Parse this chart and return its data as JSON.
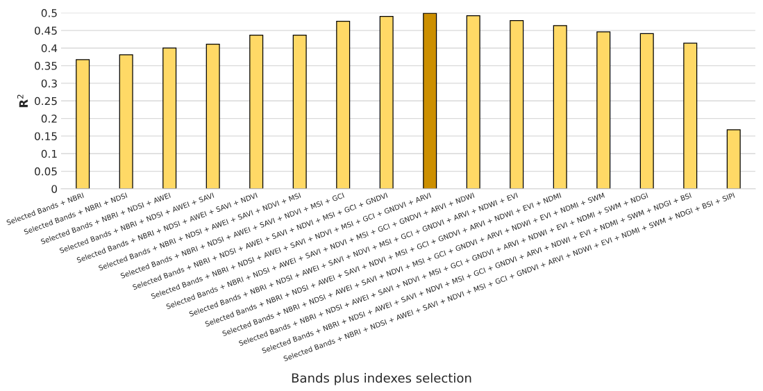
{
  "chart_data": {
    "type": "bar",
    "categories": [
      "Selected Bands + NBRI",
      "Selected Bands + NBRI + NDSI",
      "Selected Bands + NBRI + NDSI + AWEI",
      "Selected Bands + NBRI + NDSI + AWEI + SAVI",
      "Selected Bands + NBRI + NDSI + AWEI + SAVI + NDVI",
      "Selected Bands + NBRI + NDSI + AWEI + SAVI + NDVI + MSI",
      "Selected Bands + NBRI + NDSI + AWEI + SAVI + NDVI + MSI + GCI",
      "Selected Bands + NBRI + NDSI + AWEI + SAVI + NDVI + MSI + GCI + GNDVI",
      "Selected Bands + NBRI + NDSI + AWEI + SAVI + NDVI + MSI + GCI + GNDVI + ARVI",
      "Selected Bands + NBRI + NDSI + AWEI + SAVI + NDVI + MSI + GCI + GNDVI + ARVI + NDWI",
      "Selected Bands + NBRI + NDSI + AWEI + SAVI + NDVI + MSI + GCI + GNDVI + ARVI + NDWI + EVI",
      "Selected Bands + NBRI + NDSI + AWEI + SAVI + NDVI + MSI + GCI + GNDVI + ARVI + NDWI + EVI + NDMI",
      "Selected Bands + NBRI + NDSI + AWEI + SAVI + NDVI + MSI + GCI + GNDVI + ARVI + NDWI + EVI + NDMI + SWM",
      "Selected Bands + NBRI + NDSI + AWEI + SAVI + NDVI + MSI + GCI + GNDVI + ARVI + NDWI + EVI + NDMI + SWM + NDGI",
      "Selected Bands + NBRI + NDSI + AWEI + SAVI + NDVI + MSI + GCI + GNDVI + ARVI + NDWI + EVI + NDMI + SWM + NDGI + BSI",
      "Selected Bands + NBRI + NDSI + AWEI + SAVI + NDVI + MSI + GCI + GNDVI + ARVI + NDWI + EVI + NDMI + SWM + NDGI + BSI + SIPI"
    ],
    "values": [
      0.367,
      0.381,
      0.4,
      0.411,
      0.437,
      0.437,
      0.476,
      0.49,
      0.499,
      0.492,
      0.478,
      0.464,
      0.446,
      0.441,
      0.414,
      0.168
    ],
    "colors": [
      "#ffd966",
      "#ffd966",
      "#ffd966",
      "#ffd966",
      "#ffd966",
      "#ffd966",
      "#ffd966",
      "#ffd966",
      "#cc8f00",
      "#ffd966",
      "#ffd966",
      "#ffd966",
      "#ffd966",
      "#ffd966",
      "#ffd966",
      "#ffd966"
    ],
    "xlabel": "Bands plus indexes selection",
    "ylabel": "R$^{2}$",
    "ylim": [
      0,
      0.5
    ],
    "yticks": [
      0,
      0.05,
      0.1,
      0.15,
      0.2,
      0.25,
      0.3,
      0.35,
      0.4,
      0.45,
      0.5
    ],
    "grid": "y"
  }
}
